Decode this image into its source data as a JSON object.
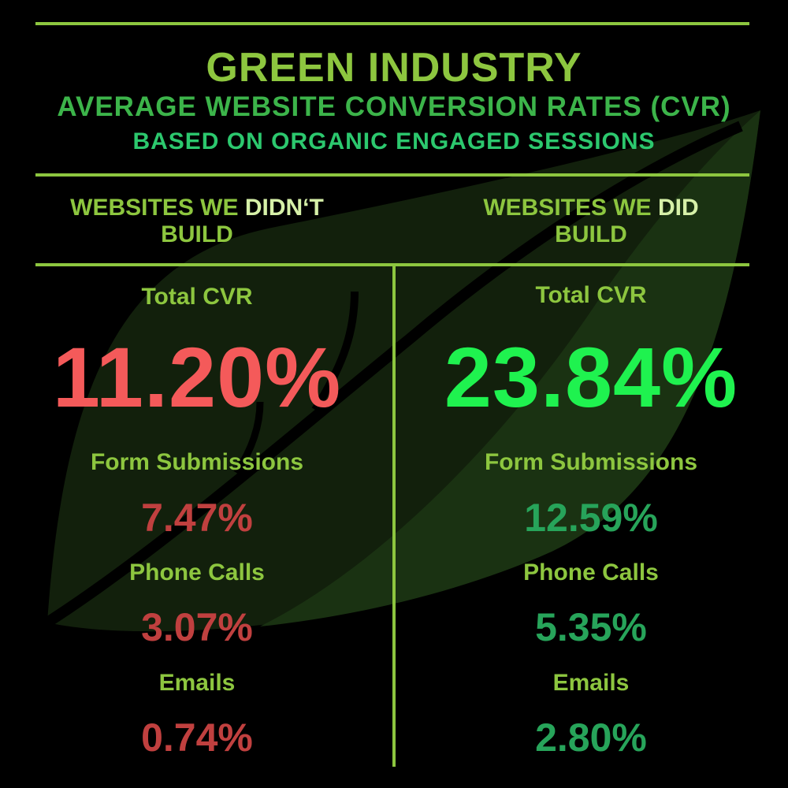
{
  "header": {
    "title": "GREEN INDUSTRY",
    "subtitle": "AVERAGE WEBSITE CONVERSION RATES (CVR)",
    "subtitle2": "BASED ON ORGANIC ENGAGED SESSIONS"
  },
  "left_column": {
    "heading_prefix": "WEBSITES WE ",
    "heading_emphasis": "DIDN‘T",
    "heading_line2": "BUILD",
    "total_label": "Total CVR",
    "total_value": "11.20%",
    "form_label": "Form Submissions",
    "form_value": "7.47%",
    "phone_label": "Phone Calls",
    "phone_value": "3.07%",
    "emails_label": "Emails",
    "emails_value": "0.74%"
  },
  "right_column": {
    "heading_prefix": "WEBSITES WE ",
    "heading_emphasis": "DID",
    "heading_line2": "BUILD",
    "total_label": "Total CVR",
    "total_value": "23.84%",
    "form_label": "Form Submissions",
    "form_value": "12.59%",
    "phone_label": "Phone Calls",
    "phone_value": "5.35%",
    "emails_label": "Emails",
    "emails_value": "2.80%"
  },
  "colors": {
    "background": "#000000",
    "accent_green": "#8DC63F",
    "negative_red": "#F45A5A",
    "positive_green": "#1FF24F"
  },
  "icons": [
    "leaf-watermark-icon"
  ]
}
